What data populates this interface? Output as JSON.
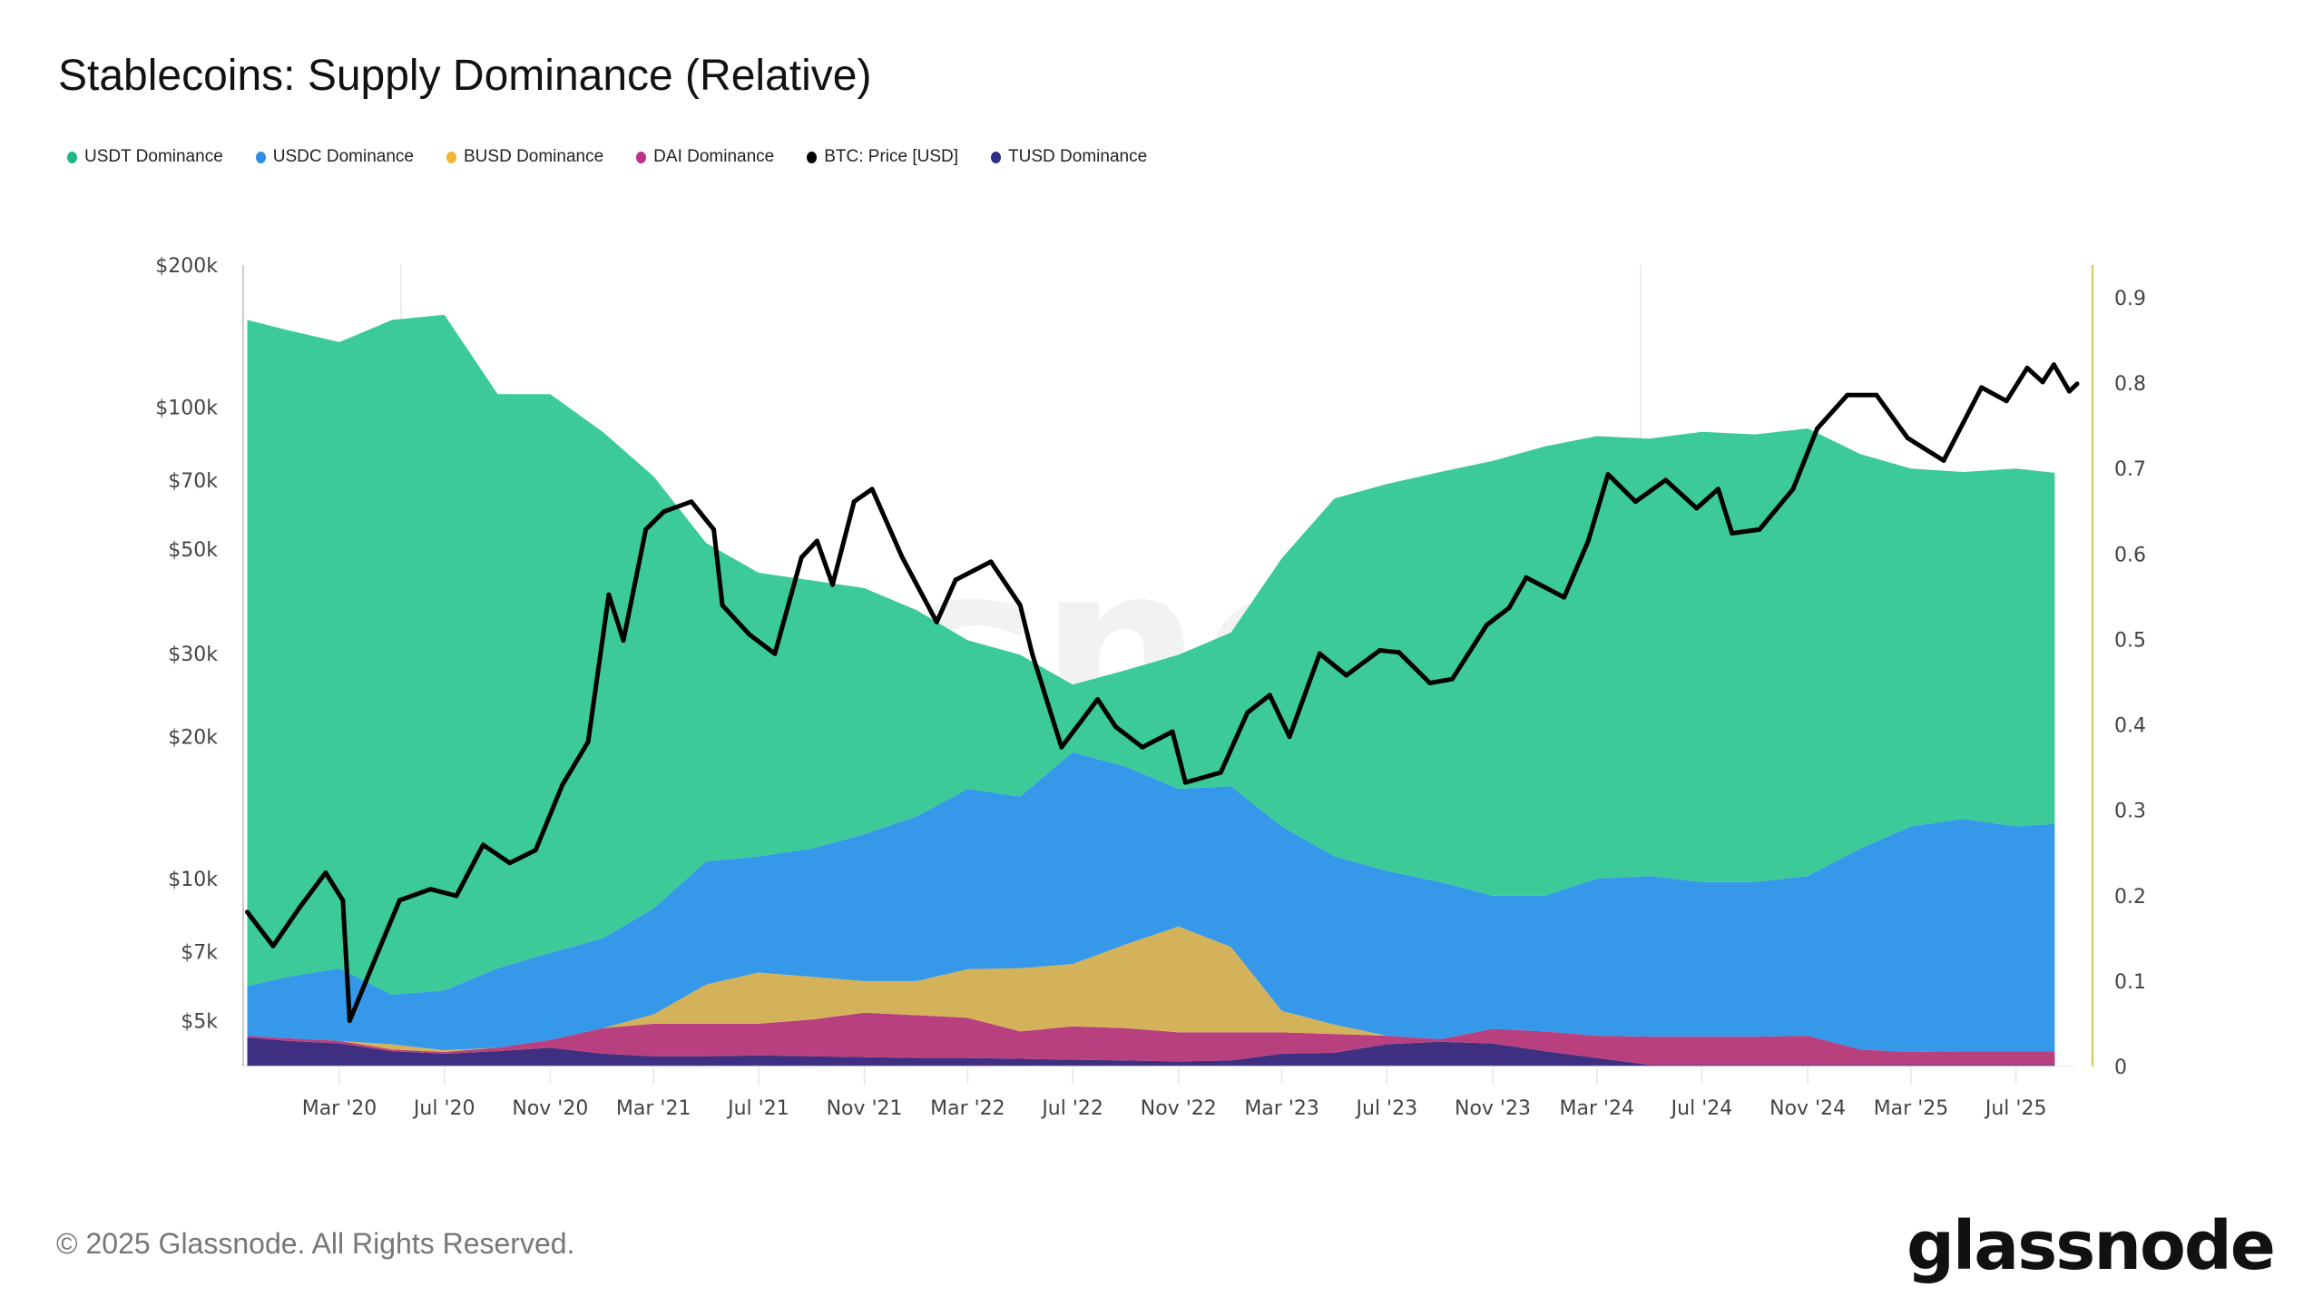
{
  "title": "Stablecoins: Supply Dominance (Relative)",
  "legend": [
    {
      "label": "USDT Dominance",
      "color": "#1bb987"
    },
    {
      "label": "USDC Dominance",
      "color": "#2f8fe8"
    },
    {
      "label": "BUSD Dominance",
      "color": "#f0b531"
    },
    {
      "label": "DAI Dominance",
      "color": "#b8338a"
    },
    {
      "label": "BTC: Price [USD]",
      "color": "#000000"
    },
    {
      "label": "TUSD Dominance",
      "color": "#2d2d86"
    }
  ],
  "footer": "© 2025 Glassnode. All Rights Reserved.",
  "logo": "glassnode",
  "watermark": "glassnode",
  "chart_data": {
    "type": "area",
    "stacked": true,
    "title": "Stablecoins: Supply Dominance (Relative)",
    "x_tick_labels": [
      "Mar '20",
      "Jul '20",
      "Nov '20",
      "Mar '21",
      "Jul '21",
      "Nov '21",
      "Mar '22",
      "Jul '22",
      "Nov '22",
      "Mar '23",
      "Jul '23",
      "Nov '23",
      "Mar '24",
      "Jul '24",
      "Nov '24",
      "Mar '25",
      "Jul '25"
    ],
    "x_tick_dates": [
      "2020-03-01",
      "2020-07-01",
      "2020-11-01",
      "2021-03-01",
      "2021-07-01",
      "2021-11-01",
      "2022-03-01",
      "2022-07-01",
      "2022-11-01",
      "2023-03-01",
      "2023-07-01",
      "2023-11-01",
      "2024-03-01",
      "2024-07-01",
      "2024-11-01",
      "2025-03-01",
      "2025-07-01"
    ],
    "left_axis": {
      "scale": "log",
      "ticks": [
        200000,
        100000,
        70000,
        50000,
        30000,
        20000,
        10000,
        7000,
        5000
      ],
      "tick_labels": [
        "$200k",
        "$100k",
        "$70k",
        "$50k",
        "$30k",
        "$20k",
        "$10k",
        "$7k",
        "$5k"
      ]
    },
    "right_axis": {
      "scale": "linear",
      "range": [
        0,
        0.9
      ],
      "ticks": [
        0,
        0.1,
        0.2,
        0.3,
        0.4,
        0.5,
        0.6,
        0.7,
        0.8,
        0.9
      ],
      "tick_labels": [
        "0",
        "0.1",
        "0.2",
        "0.3",
        "0.4",
        "0.5",
        "0.6",
        "0.7",
        "0.8",
        "0.9"
      ]
    },
    "dates": [
      "2019-11-15",
      "2020-01-01",
      "2020-03-01",
      "2020-05-01",
      "2020-07-01",
      "2020-09-01",
      "2020-11-01",
      "2021-01-01",
      "2021-03-01",
      "2021-05-01",
      "2021-07-01",
      "2021-09-01",
      "2021-11-01",
      "2022-01-01",
      "2022-03-01",
      "2022-05-01",
      "2022-07-01",
      "2022-09-01",
      "2022-11-01",
      "2023-01-01",
      "2023-03-01",
      "2023-05-01",
      "2023-07-01",
      "2023-09-01",
      "2023-11-01",
      "2024-01-01",
      "2024-03-01",
      "2024-05-01",
      "2024-07-01",
      "2024-09-01",
      "2024-11-01",
      "2025-01-01",
      "2025-03-01",
      "2025-05-01",
      "2025-07-01",
      "2025-08-15"
    ],
    "series": [
      {
        "name": "TUSD Dominance",
        "color": "#3f2f80",
        "values": [
          0.034,
          0.03,
          0.027,
          0.018,
          0.015,
          0.018,
          0.022,
          0.015,
          0.012,
          0.012,
          0.013,
          0.012,
          0.011,
          0.01,
          0.01,
          0.009,
          0.008,
          0.007,
          0.006,
          0.007,
          0.015,
          0.016,
          0.026,
          0.029,
          0.027,
          0.018,
          0.01,
          0.002,
          0.002,
          0.002,
          0.002,
          0.002,
          0.002,
          0.002,
          0.002,
          0.002
        ]
      },
      {
        "name": "DAI Dominance",
        "color": "#b8407f",
        "values": [
          0.002,
          0.003,
          0.003,
          0.002,
          0.002,
          0.004,
          0.009,
          0.03,
          0.038,
          0.038,
          0.037,
          0.043,
          0.052,
          0.05,
          0.047,
          0.032,
          0.039,
          0.038,
          0.034,
          0.033,
          0.025,
          0.022,
          0.01,
          0.003,
          0.017,
          0.023,
          0.026,
          0.033,
          0.033,
          0.033,
          0.034,
          0.018,
          0.015,
          0.016,
          0.016,
          0.016
        ]
      },
      {
        "name": "BUSD Dominance",
        "color": "#d4b25a",
        "values": [
          0,
          0,
          0,
          0.006,
          0.002,
          0,
          0,
          0,
          0.011,
          0.046,
          0.06,
          0.05,
          0.037,
          0.04,
          0.057,
          0.074,
          0.073,
          0.098,
          0.124,
          0.1,
          0.025,
          0.011,
          0,
          0,
          0,
          0,
          0,
          0,
          0,
          0,
          0,
          0,
          0,
          0,
          0,
          0
        ]
      },
      {
        "name": "USDC Dominance",
        "color": "#3598e8",
        "values": [
          0.058,
          0.072,
          0.085,
          0.058,
          0.07,
          0.093,
          0.102,
          0.105,
          0.124,
          0.144,
          0.136,
          0.15,
          0.172,
          0.193,
          0.211,
          0.201,
          0.248,
          0.208,
          0.161,
          0.188,
          0.216,
          0.197,
          0.193,
          0.184,
          0.156,
          0.159,
          0.184,
          0.188,
          0.181,
          0.181,
          0.187,
          0.235,
          0.264,
          0.272,
          0.263,
          0.266
        ]
      },
      {
        "name": "USDT Dominance",
        "color": "#3ccb98",
        "values": [
          0.78,
          0.757,
          0.733,
          0.79,
          0.791,
          0.672,
          0.654,
          0.593,
          0.506,
          0.373,
          0.332,
          0.314,
          0.288,
          0.241,
          0.174,
          0.166,
          0.079,
          0.113,
          0.157,
          0.18,
          0.314,
          0.419,
          0.453,
          0.48,
          0.509,
          0.526,
          0.518,
          0.512,
          0.527,
          0.524,
          0.524,
          0.462,
          0.419,
          0.406,
          0.419,
          0.411
        ]
      }
    ],
    "btc_price": {
      "name": "BTC: Price [USD]",
      "color": "#000000",
      "dates": [
        "2019-11-15",
        "2019-12-15",
        "2020-01-15",
        "2020-02-14",
        "2020-03-05",
        "2020-03-13",
        "2020-04-15",
        "2020-05-10",
        "2020-06-15",
        "2020-07-15",
        "2020-08-15",
        "2020-09-15",
        "2020-10-15",
        "2020-11-15",
        "2020-12-15",
        "2021-01-08",
        "2021-01-25",
        "2021-02-20",
        "2021-03-13",
        "2021-04-14",
        "2021-05-10",
        "2021-05-20",
        "2021-06-20",
        "2021-07-20",
        "2021-08-20",
        "2021-09-07",
        "2021-09-25",
        "2021-10-20",
        "2021-11-10",
        "2021-12-15",
        "2022-01-24",
        "2022-02-15",
        "2022-03-28",
        "2022-05-01",
        "2022-05-15",
        "2022-06-18",
        "2022-07-30",
        "2022-08-20",
        "2022-09-20",
        "2022-10-25",
        "2022-11-09",
        "2022-12-20",
        "2023-01-20",
        "2023-02-15",
        "2023-03-10",
        "2023-04-14",
        "2023-05-15",
        "2023-06-23",
        "2023-07-15",
        "2023-08-20",
        "2023-09-15",
        "2023-10-25",
        "2023-11-20",
        "2023-12-10",
        "2024-01-23",
        "2024-02-20",
        "2024-03-14",
        "2024-04-15",
        "2024-05-20",
        "2024-06-25",
        "2024-07-20",
        "2024-08-05",
        "2024-09-06",
        "2024-10-15",
        "2024-11-12",
        "2024-12-17",
        "2025-01-20",
        "2025-02-25",
        "2025-03-15",
        "2025-04-08",
        "2025-05-22",
        "2025-06-20",
        "2025-07-14",
        "2025-08-01",
        "2025-08-14",
        "2025-09-01",
        "2025-09-10"
      ],
      "values": [
        8500,
        7200,
        8700,
        10300,
        9000,
        5000,
        7000,
        9000,
        9500,
        9200,
        11800,
        10800,
        11500,
        15800,
        19500,
        40000,
        32000,
        55000,
        60000,
        63000,
        55000,
        38000,
        33000,
        30000,
        48000,
        52000,
        42000,
        63000,
        67000,
        48000,
        35000,
        43000,
        47000,
        38000,
        30000,
        19000,
        24000,
        21000,
        19000,
        20500,
        16000,
        16800,
        22500,
        24500,
        20000,
        30000,
        27000,
        30500,
        30200,
        26000,
        26500,
        34500,
        37500,
        43500,
        39500,
        52000,
        72000,
        63000,
        70000,
        61000,
        67000,
        54000,
        55000,
        67000,
        90000,
        106000,
        106000,
        86000,
        82000,
        77000,
        110000,
        103000,
        121000,
        113000,
        123000,
        108000,
        112000
      ]
    }
  }
}
